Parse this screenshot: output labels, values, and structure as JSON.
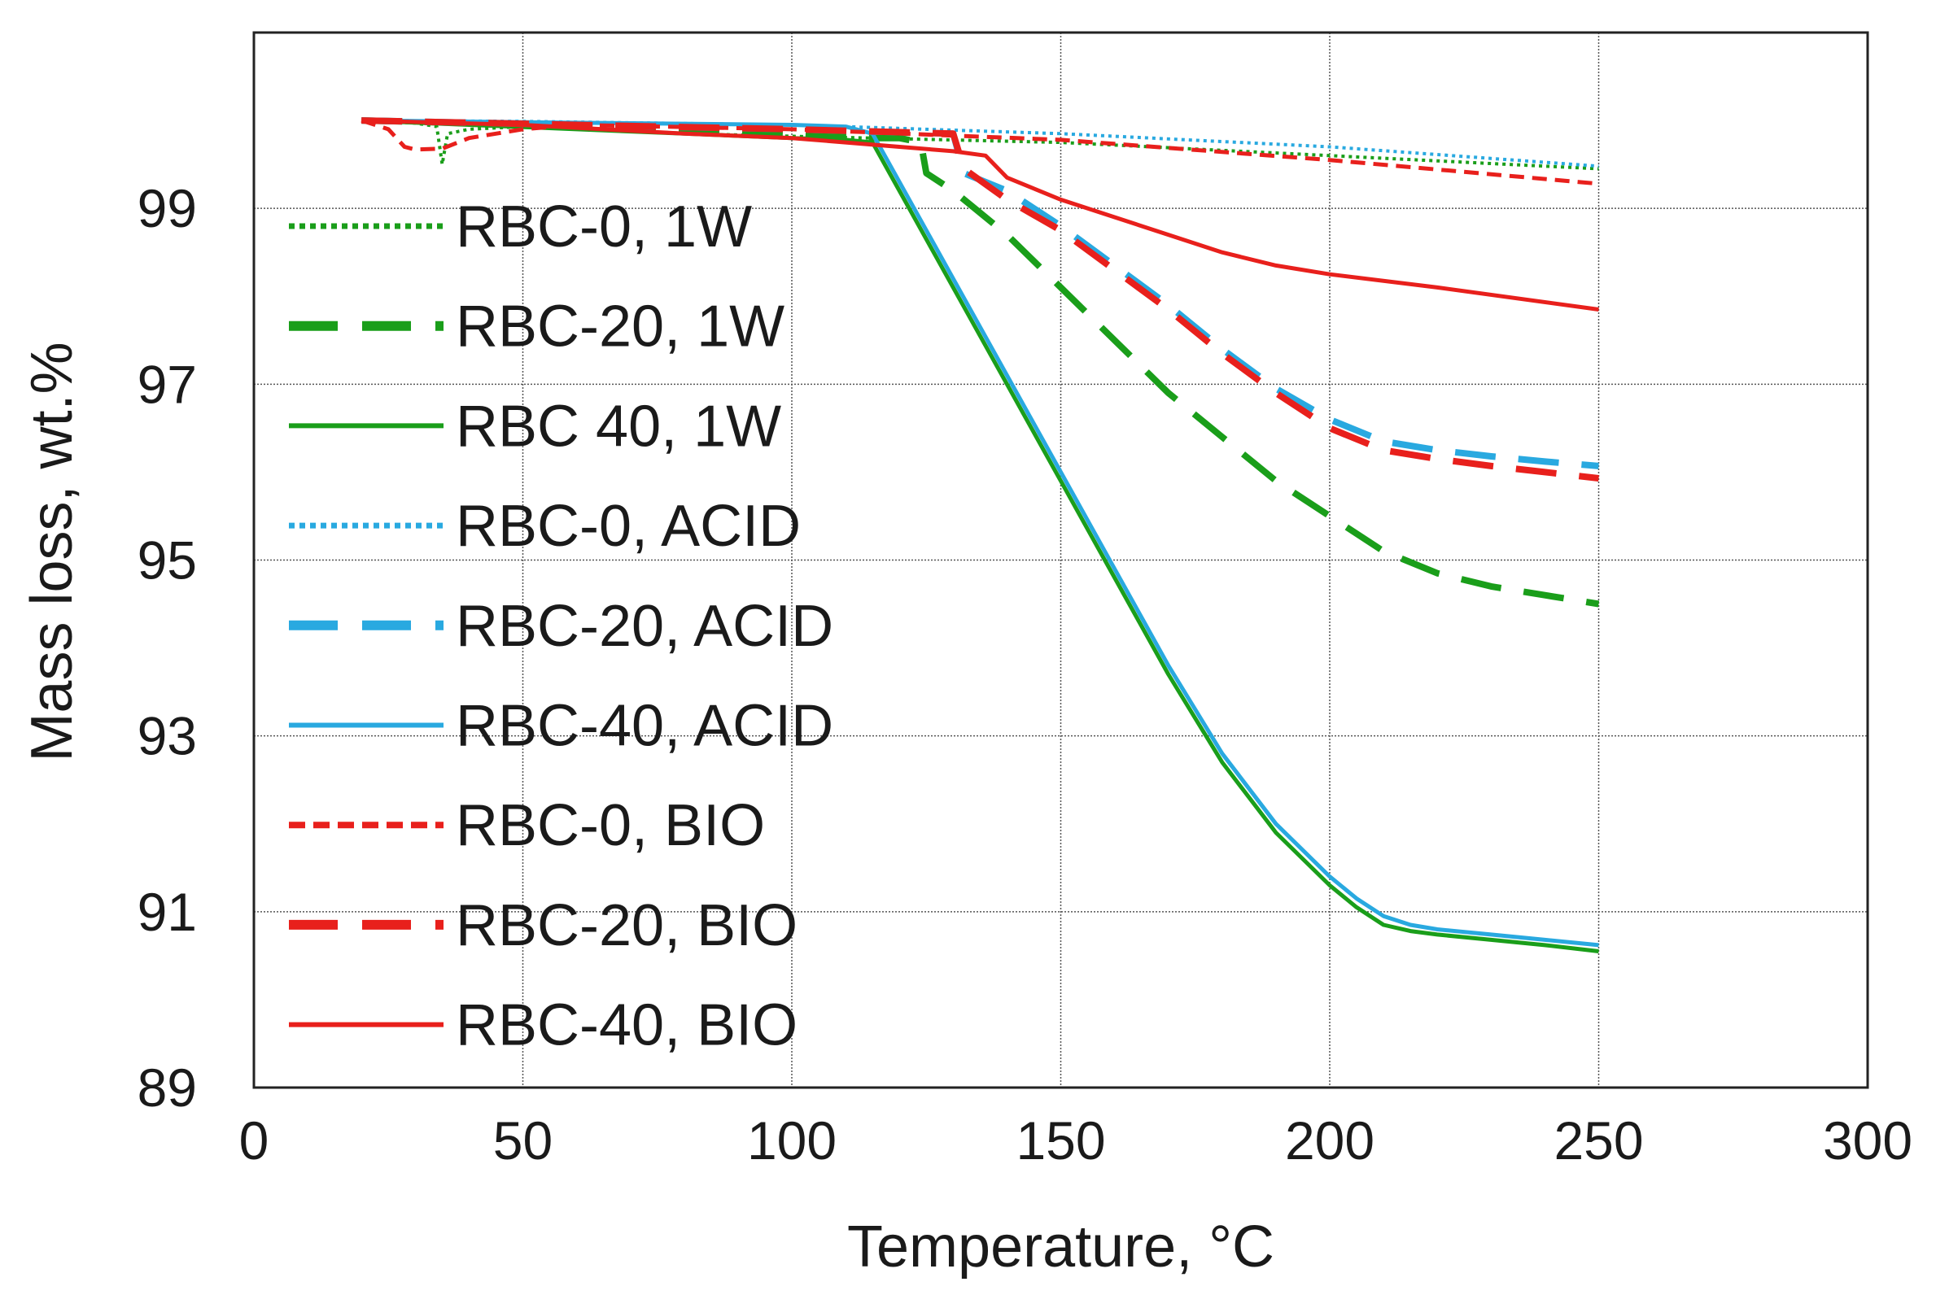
{
  "chart_data": {
    "type": "line",
    "title": "",
    "xlabel": "Temperature, °C",
    "ylabel": "Mass loss, wt.%",
    "xlim": [
      0,
      300
    ],
    "ylim": [
      89,
      101
    ],
    "xticks": [
      0,
      50,
      100,
      150,
      200,
      250,
      300
    ],
    "yticks": [
      89,
      91,
      93,
      95,
      97,
      99
    ],
    "x_tick_labels": [
      "0",
      "50",
      "100",
      "150",
      "200",
      "250",
      "300"
    ],
    "y_tick_labels": [
      "89",
      "91",
      "93",
      "95",
      "97",
      "99"
    ],
    "grid": true,
    "legend_position": "left",
    "series": [
      {
        "name": "RBC-0, 1W",
        "color": "#1a9e1a",
        "style": "dotted",
        "x": [
          20,
          30,
          34,
          35,
          36,
          40,
          50,
          60,
          80,
          100,
          150,
          200,
          250
        ],
        "y": [
          100,
          99.97,
          99.93,
          99.5,
          99.85,
          99.9,
          99.93,
          99.9,
          99.85,
          99.82,
          99.75,
          99.6,
          99.45
        ]
      },
      {
        "name": "RBC-20, 1W",
        "color": "#1a9e1a",
        "style": "dashed",
        "x": [
          20,
          40,
          60,
          80,
          100,
          115,
          120,
          124,
          125,
          130,
          140,
          150,
          160,
          170,
          180,
          190,
          200,
          210,
          220,
          230,
          240,
          250
        ],
        "y": [
          100,
          99.97,
          99.95,
          99.9,
          99.85,
          99.8,
          99.8,
          99.75,
          99.4,
          99.2,
          98.7,
          98.1,
          97.5,
          96.9,
          96.4,
          95.9,
          95.5,
          95.1,
          94.85,
          94.7,
          94.6,
          94.5
        ]
      },
      {
        "name": "RBC 40, 1W",
        "color": "#1a9e1a",
        "style": "solid",
        "x": [
          20,
          40,
          60,
          80,
          100,
          110,
          115,
          120,
          130,
          140,
          150,
          160,
          170,
          180,
          190,
          200,
          205,
          210,
          215,
          220,
          230,
          240,
          250
        ],
        "y": [
          100,
          99.95,
          99.9,
          99.85,
          99.8,
          99.78,
          99.75,
          99.2,
          98.1,
          97.0,
          95.9,
          94.8,
          93.7,
          92.7,
          91.9,
          91.3,
          91.05,
          90.85,
          90.78,
          90.74,
          90.68,
          90.62,
          90.55
        ]
      },
      {
        "name": "RBC-0, ACID",
        "color": "#29a9e0",
        "style": "dotted",
        "x": [
          20,
          50,
          100,
          150,
          200,
          250
        ],
        "y": [
          100,
          99.99,
          99.95,
          99.85,
          99.7,
          99.48
        ]
      },
      {
        "name": "RBC-20, ACID",
        "color": "#29a9e0",
        "style": "dashed",
        "x": [
          20,
          60,
          100,
          130,
          132,
          140,
          150,
          160,
          170,
          180,
          190,
          200,
          210,
          220,
          230,
          240,
          250
        ],
        "y": [
          100,
          99.95,
          99.9,
          99.85,
          99.4,
          99.2,
          98.8,
          98.35,
          97.9,
          97.4,
          96.95,
          96.6,
          96.35,
          96.25,
          96.18,
          96.12,
          96.07
        ]
      },
      {
        "name": "RBC-40, ACID",
        "color": "#29a9e0",
        "style": "solid",
        "x": [
          20,
          50,
          100,
          110,
          115,
          120,
          130,
          140,
          150,
          160,
          170,
          180,
          190,
          200,
          205,
          210,
          215,
          220,
          230,
          240,
          250
        ],
        "y": [
          100,
          99.98,
          99.95,
          99.93,
          99.85,
          99.3,
          98.2,
          97.1,
          96.0,
          94.9,
          93.8,
          92.8,
          92.0,
          91.4,
          91.15,
          90.95,
          90.85,
          90.8,
          90.74,
          90.68,
          90.62
        ]
      },
      {
        "name": "RBC-0, BIO",
        "color": "#e8201c",
        "style": "dashed-short",
        "x": [
          20,
          25,
          28,
          30,
          35,
          40,
          50,
          60,
          100,
          150,
          200,
          250
        ],
        "y": [
          100,
          99.9,
          99.7,
          99.67,
          99.68,
          99.8,
          99.9,
          99.95,
          99.9,
          99.78,
          99.55,
          99.28
        ]
      },
      {
        "name": "RBC-20, BIO",
        "color": "#e8201c",
        "style": "dashed",
        "x": [
          20,
          60,
          100,
          130,
          132,
          140,
          150,
          160,
          170,
          180,
          190,
          200,
          210,
          220,
          230,
          240,
          250
        ],
        "y": [
          100,
          99.95,
          99.9,
          99.85,
          99.45,
          99.1,
          98.75,
          98.3,
          97.85,
          97.35,
          96.9,
          96.5,
          96.25,
          96.15,
          96.07,
          96.0,
          95.93
        ]
      },
      {
        "name": "RBC-40, BIO",
        "color": "#e8201c",
        "style": "solid",
        "x": [
          20,
          50,
          80,
          100,
          120,
          130,
          136,
          140,
          150,
          160,
          170,
          180,
          190,
          200,
          220,
          250
        ],
        "y": [
          100,
          99.95,
          99.85,
          99.8,
          99.7,
          99.65,
          99.6,
          99.35,
          99.1,
          98.9,
          98.7,
          98.5,
          98.35,
          98.25,
          98.1,
          97.85
        ]
      }
    ]
  }
}
